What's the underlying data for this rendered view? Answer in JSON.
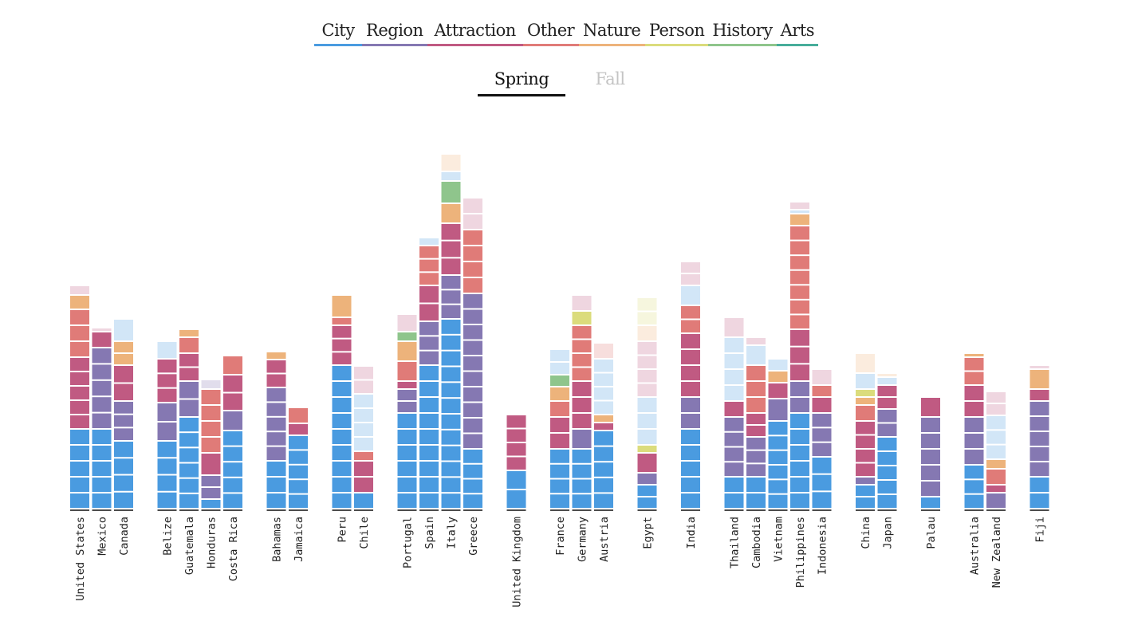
{
  "category_tabs": [
    {
      "label": "City",
      "color": "#4a9be0"
    },
    {
      "label": "Region",
      "color": "#8578b2"
    },
    {
      "label": "Attraction",
      "color": "#c05a82"
    },
    {
      "label": "Other",
      "color": "#e07b78"
    },
    {
      "label": "Nature",
      "color": "#edb37b"
    },
    {
      "label": "Person",
      "color": "#dbdc7c"
    },
    {
      "label": "History",
      "color": "#8fc58c"
    },
    {
      "label": "Arts",
      "color": "#47ad9a"
    }
  ],
  "season_tabs": {
    "active": "Spring",
    "inactive": "Fall"
  },
  "chart_data": {
    "type": "bar",
    "stacked": true,
    "unit_note": "",
    "category_colors": {
      "City": "#4a9be0",
      "Region": "#8578b2",
      "Attraction": "#c05a82",
      "Other": "#e07b78",
      "Nature": "#edb37b",
      "Person": "#dbdc7c",
      "History": "#8fc58c",
      "Arts": "#47ad9a"
    },
    "groups": [
      [
        "United States",
        "Mexico",
        "Canada"
      ],
      [
        "Belize",
        "Guatemala",
        "Honduras",
        "Costa Rica"
      ],
      [
        "Bahamas",
        "Jamaica"
      ],
      [
        "Peru",
        "Chile"
      ],
      [
        "Portugal",
        "Spain",
        "Italy",
        "Greece"
      ],
      [
        "United Kingdom"
      ],
      [
        "France",
        "Germany",
        "Austria"
      ],
      [
        "Egypt"
      ],
      [
        "India"
      ],
      [
        "Thailand",
        "Cambodia",
        "Vietnam",
        "Philippines",
        "Indonesia"
      ],
      [
        "China",
        "Japan"
      ],
      [
        "Palau"
      ],
      [
        "Australia",
        "New Zealand"
      ],
      [
        "Fiji"
      ]
    ],
    "countries": [
      {
        "name": "United States",
        "segments": [
          [
            "City",
            100
          ],
          [
            "Attraction",
            90
          ],
          [
            "Other",
            60
          ],
          [
            "Nature",
            18
          ],
          [
            "Attraction",
            12,
            true
          ]
        ]
      },
      {
        "name": "Mexico",
        "segments": [
          [
            "City",
            100
          ],
          [
            "Region",
            102
          ],
          [
            "Attraction",
            20
          ],
          [
            "Attraction",
            5,
            true
          ]
        ]
      },
      {
        "name": "Canada",
        "segments": [
          [
            "City",
            85
          ],
          [
            "Region",
            50
          ],
          [
            "Attraction",
            45
          ],
          [
            "Nature",
            30
          ],
          [
            "City",
            28,
            true
          ]
        ]
      },
      {
        "name": "Belize",
        "segments": [
          [
            "City",
            85
          ],
          [
            "Region",
            48
          ],
          [
            "Attraction",
            55
          ],
          [
            "City",
            22,
            true
          ]
        ]
      },
      {
        "name": "Guatemala",
        "segments": [
          [
            "City",
            115
          ],
          [
            "Region",
            45
          ],
          [
            "Attraction",
            35
          ],
          [
            "Other",
            20
          ],
          [
            "Nature",
            10
          ]
        ]
      },
      {
        "name": "Honduras",
        "segments": [
          [
            "City",
            12
          ],
          [
            "Region",
            30
          ],
          [
            "Attraction",
            28
          ],
          [
            "Other",
            80
          ],
          [
            "Region",
            12,
            true
          ]
        ]
      },
      {
        "name": "Costa Rica",
        "segments": [
          [
            "City",
            98
          ],
          [
            "Region",
            25
          ],
          [
            "Attraction",
            45
          ],
          [
            "Other",
            24
          ]
        ]
      },
      {
        "name": "Bahamas",
        "segments": [
          [
            "City",
            60
          ],
          [
            "Region",
            92
          ],
          [
            "Attraction",
            35
          ],
          [
            "Nature",
            10
          ]
        ]
      },
      {
        "name": "Jamaica",
        "segments": [
          [
            "City",
            92
          ],
          [
            "Attraction",
            15
          ],
          [
            "Other",
            20
          ]
        ]
      },
      {
        "name": "Peru",
        "segments": [
          [
            "City",
            180
          ],
          [
            "Attraction",
            50
          ],
          [
            "Other",
            10
          ],
          [
            "Nature",
            28
          ]
        ]
      },
      {
        "name": "Chile",
        "segments": [
          [
            "City",
            20
          ],
          [
            "Attraction",
            40
          ],
          [
            "Other",
            12
          ],
          [
            "City",
            72,
            true
          ],
          [
            "Attraction",
            35,
            true
          ]
        ]
      },
      {
        "name": "Portugal",
        "segments": [
          [
            "City",
            120
          ],
          [
            "Region",
            30
          ],
          [
            "Attraction",
            10
          ],
          [
            "Other",
            25
          ],
          [
            "Nature",
            25
          ],
          [
            "History",
            12
          ],
          [
            "Attraction",
            22,
            true
          ]
        ]
      },
      {
        "name": "Spain",
        "segments": [
          [
            "City",
            180
          ],
          [
            "Region",
            55
          ],
          [
            "Attraction",
            45
          ],
          [
            "Other",
            50
          ],
          [
            "City",
            10,
            true
          ]
        ]
      },
      {
        "name": "Italy",
        "segments": [
          [
            "City",
            238
          ],
          [
            "Region",
            55
          ],
          [
            "Attraction",
            65
          ],
          [
            "Nature",
            25
          ],
          [
            "History",
            28
          ],
          [
            "City",
            12,
            true
          ],
          [
            "Nature",
            22,
            true
          ]
        ]
      },
      {
        "name": "Greece",
        "segments": [
          [
            "City",
            75
          ],
          [
            "Region",
            195
          ],
          [
            "Other",
            80
          ],
          [
            "Attraction",
            20,
            true
          ],
          [
            "Attraction",
            20,
            true
          ]
        ]
      },
      {
        "name": "United Kingdom",
        "segments": [
          [
            "City",
            48
          ],
          [
            "Attraction",
            70
          ]
        ]
      },
      {
        "name": "France",
        "segments": [
          [
            "City",
            75
          ],
          [
            "Attraction",
            40
          ],
          [
            "Other",
            20
          ],
          [
            "Nature",
            18
          ],
          [
            "History",
            15
          ],
          [
            "City",
            32,
            true
          ]
        ]
      },
      {
        "name": "Germany",
        "segments": [
          [
            "City",
            75
          ],
          [
            "Region",
            25
          ],
          [
            "Attraction",
            60
          ],
          [
            "Other",
            70
          ],
          [
            "Person",
            18
          ],
          [
            "Attraction",
            20,
            true
          ]
        ]
      },
      {
        "name": "Austria",
        "segments": [
          [
            "City",
            98
          ],
          [
            "Attraction",
            10
          ],
          [
            "Nature",
            10
          ],
          [
            "City",
            70,
            true
          ],
          [
            "Other",
            20,
            true
          ]
        ]
      },
      {
        "name": "Egypt",
        "segments": [
          [
            "City",
            30
          ],
          [
            "Region",
            15
          ],
          [
            "Attraction",
            25
          ],
          [
            "Person",
            10
          ],
          [
            "City",
            60,
            true
          ],
          [
            "Attraction",
            70,
            true
          ],
          [
            "Nature",
            20,
            true
          ],
          [
            "Person",
            35,
            true
          ]
        ]
      },
      {
        "name": "India",
        "segments": [
          [
            "City",
            100
          ],
          [
            "Region",
            40
          ],
          [
            "Attraction",
            80
          ],
          [
            "Other",
            35
          ],
          [
            "City",
            25,
            true
          ],
          [
            "Attraction",
            30,
            true
          ]
        ]
      },
      {
        "name": "Thailand",
        "segments": [
          [
            "City",
            40
          ],
          [
            "Region",
            75
          ],
          [
            "Attraction",
            20
          ],
          [
            "City",
            80,
            true
          ],
          [
            "Attraction",
            25,
            true
          ]
        ]
      },
      {
        "name": "Cambodia",
        "segments": [
          [
            "City",
            40
          ],
          [
            "Region",
            50
          ],
          [
            "Attraction",
            30
          ],
          [
            "Other",
            60
          ],
          [
            "City",
            25,
            true
          ],
          [
            "Attraction",
            10,
            true
          ]
        ]
      },
      {
        "name": "Vietnam",
        "segments": [
          [
            "City",
            110
          ],
          [
            "Region",
            28
          ],
          [
            "Attraction",
            20
          ],
          [
            "Nature",
            15
          ],
          [
            "City",
            15,
            true
          ]
        ]
      },
      {
        "name": "Philippines",
        "segments": [
          [
            "City",
            120
          ],
          [
            "Region",
            40
          ],
          [
            "Attraction",
            65
          ],
          [
            "Other",
            130
          ],
          [
            "Nature",
            15
          ],
          [
            "City",
            5,
            true
          ],
          [
            "Attraction",
            10,
            true
          ]
        ]
      },
      {
        "name": "Indonesia",
        "segments": [
          [
            "City",
            65
          ],
          [
            "Region",
            55
          ],
          [
            "Attraction",
            20
          ],
          [
            "Other",
            15
          ],
          [
            "Attraction",
            20,
            true
          ]
        ]
      },
      {
        "name": "China",
        "segments": [
          [
            "City",
            30
          ],
          [
            "Region",
            10
          ],
          [
            "Attraction",
            70
          ],
          [
            "Other",
            20
          ],
          [
            "Nature",
            10
          ],
          [
            "Person",
            10
          ],
          [
            "City",
            20,
            true
          ],
          [
            "Nature",
            25,
            true
          ]
        ]
      },
      {
        "name": "Japan",
        "segments": [
          [
            "City",
            90
          ],
          [
            "Region",
            35
          ],
          [
            "Attraction",
            30
          ],
          [
            "City",
            10,
            true
          ],
          [
            "Nature",
            5,
            true
          ]
        ]
      },
      {
        "name": "Palau",
        "segments": [
          [
            "City",
            15
          ],
          [
            "Region",
            100
          ],
          [
            "Attraction",
            25
          ]
        ]
      },
      {
        "name": "Australia",
        "segments": [
          [
            "City",
            55
          ],
          [
            "Region",
            60
          ],
          [
            "Attraction",
            40
          ],
          [
            "Other",
            35
          ],
          [
            "Nature",
            5
          ]
        ]
      },
      {
        "name": "New Zealand",
        "segments": [
          [
            "Region",
            20
          ],
          [
            "Attraction",
            10
          ],
          [
            "Other",
            20
          ],
          [
            "Nature",
            12
          ],
          [
            "City",
            55,
            true
          ],
          [
            "Attraction",
            30,
            true
          ]
        ]
      },
      {
        "name": "Fiji",
        "segments": [
          [
            "City",
            40
          ],
          [
            "Region",
            95
          ],
          [
            "Attraction",
            15
          ],
          [
            "Nature",
            25
          ],
          [
            "Attraction",
            5,
            true
          ]
        ]
      }
    ]
  }
}
